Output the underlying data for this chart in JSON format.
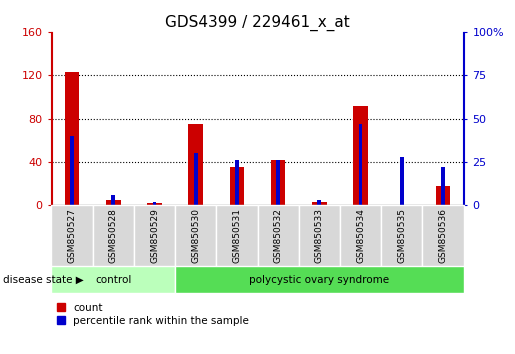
{
  "title": "GDS4399 / 229461_x_at",
  "samples": [
    "GSM850527",
    "GSM850528",
    "GSM850529",
    "GSM850530",
    "GSM850531",
    "GSM850532",
    "GSM850533",
    "GSM850534",
    "GSM850535",
    "GSM850536"
  ],
  "count": [
    123,
    5,
    2,
    75,
    35,
    42,
    3,
    92,
    0,
    18
  ],
  "percentile": [
    40,
    6,
    2,
    30,
    26,
    26,
    3,
    47,
    28,
    22
  ],
  "groups": [
    {
      "label": "control",
      "start": 0,
      "end": 3,
      "color": "#bbffbb"
    },
    {
      "label": "polycystic ovary syndrome",
      "start": 3,
      "end": 10,
      "color": "#55dd55"
    }
  ],
  "ylim_left": [
    0,
    160
  ],
  "ylim_right": [
    0,
    100
  ],
  "yticks_left": [
    0,
    40,
    80,
    120,
    160
  ],
  "ytick_labels_left": [
    "0",
    "40",
    "80",
    "120",
    "160"
  ],
  "yticks_right": [
    0,
    25,
    50,
    75,
    100
  ],
  "ytick_labels_right": [
    "0",
    "25",
    "50",
    "75",
    "100%"
  ],
  "bar_color_red": "#cc0000",
  "bar_color_blue": "#0000cc",
  "bg_color": "#ffffff",
  "plot_bg_color": "#ffffff",
  "disease_state_label": "disease state",
  "legend_count": "count",
  "legend_percentile": "percentile rank within the sample",
  "title_fontsize": 11,
  "tick_fontsize": 8,
  "grid_yticks": [
    40,
    80,
    120
  ]
}
